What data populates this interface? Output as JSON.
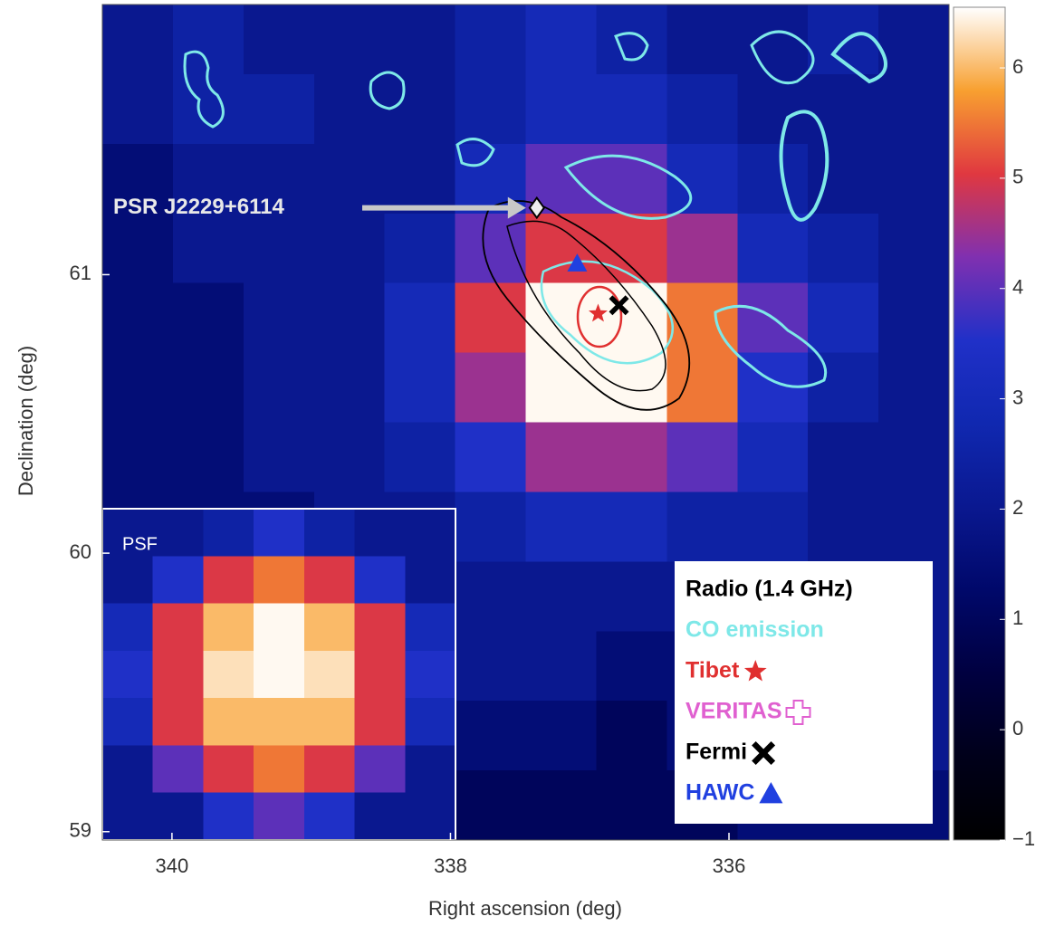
{
  "chart_data": {
    "type": "skymap",
    "xlabel": "Right ascension (deg)",
    "ylabel": "Declination (deg)",
    "xlim": [
      340.5,
      334.42
    ],
    "ylim": [
      58.97,
      61.97
    ],
    "xticks": [
      340,
      338,
      336
    ],
    "yticks": [
      59,
      60,
      61
    ],
    "clim": [
      -1,
      6.55
    ],
    "cticks": [
      {
        "value": -1,
        "label": "−1"
      },
      0,
      1,
      2,
      3,
      4,
      5,
      6
    ],
    "colormap": [
      "#000000",
      "#00001a",
      "#000040",
      "#00086a",
      "#0a1890",
      "#1028b0",
      "#2030c8",
      "#8030b0",
      "#e03840",
      "#f8a030",
      "#ffffff"
    ],
    "values": [
      [
        2,
        2.5,
        2,
        2,
        2,
        2.5,
        3,
        2.5,
        2,
        2,
        2.5,
        2
      ],
      [
        2,
        2.5,
        2.5,
        2,
        2,
        2.5,
        3,
        3,
        2.5,
        2,
        2,
        2
      ],
      [
        1.5,
        2,
        2,
        2,
        2,
        3,
        4,
        4,
        3,
        2.5,
        2,
        2
      ],
      [
        1.5,
        2,
        2,
        2,
        2.5,
        4,
        5,
        5,
        4.5,
        3,
        2.5,
        2
      ],
      [
        1.5,
        1.5,
        2,
        2,
        3,
        5,
        6.5,
        6.5,
        5.5,
        4,
        3,
        2
      ],
      [
        1.5,
        1.5,
        2,
        2,
        3,
        4.5,
        6.5,
        6.5,
        5.5,
        3.5,
        2.5,
        2
      ],
      [
        1.5,
        1.5,
        2,
        2,
        2.5,
        3.5,
        4.5,
        4.5,
        4,
        3,
        2,
        2
      ],
      [
        1.5,
        1.5,
        1.5,
        2,
        2,
        2.5,
        3,
        3,
        2.5,
        2.5,
        2,
        2
      ],
      [
        1.5,
        1.5,
        1.5,
        1.5,
        2,
        2,
        2,
        2,
        2,
        2,
        2,
        2
      ],
      [
        1.5,
        1.5,
        1.5,
        1.5,
        1.5,
        2,
        2,
        1.5,
        1.5,
        2,
        2,
        2
      ],
      [
        1,
        1,
        1,
        1,
        1.5,
        1.5,
        1.5,
        1,
        1.5,
        1.5,
        2,
        2
      ],
      [
        1,
        1,
        1,
        1,
        1,
        1,
        1,
        1,
        1,
        1.5,
        1.5,
        1.5
      ]
    ],
    "inset": {
      "label": "PSF",
      "values": [
        [
          2,
          2,
          2.5,
          3.5,
          2.5,
          2,
          2
        ],
        [
          2,
          3.5,
          5,
          5.5,
          5,
          3.5,
          2
        ],
        [
          3,
          5,
          6,
          6.5,
          6,
          5,
          3
        ],
        [
          3.5,
          5,
          6.3,
          6.5,
          6.3,
          5,
          3.5
        ],
        [
          3,
          5,
          6,
          6,
          6,
          5,
          3
        ],
        [
          2,
          4,
          5,
          5.5,
          5,
          4,
          2
        ],
        [
          2,
          2,
          3.5,
          4,
          3.5,
          2,
          2
        ]
      ]
    },
    "series": [
      {
        "name": "Radio (1.4 GHz)",
        "color": "#000000"
      },
      {
        "name": "CO emission",
        "color": "#7ee8e8"
      },
      {
        "name": "Tibet",
        "color": "#e03030",
        "marker": "star",
        "x": [
          336.94
        ],
        "y": [
          60.86
        ]
      },
      {
        "name": "VERITAS",
        "color": "#e060d0",
        "marker": "cross"
      },
      {
        "name": "Fermi",
        "color": "#000000",
        "marker": "x",
        "x": [
          336.79
        ],
        "y": [
          60.89
        ]
      },
      {
        "name": "HAWC",
        "color": "#2040e0",
        "marker": "triangle",
        "x": [
          337.09
        ],
        "y": [
          61.04
        ]
      }
    ],
    "annotations": [
      {
        "text": "PSR J2229+6114",
        "x": 337.38,
        "y": 61.24
      }
    ]
  }
}
